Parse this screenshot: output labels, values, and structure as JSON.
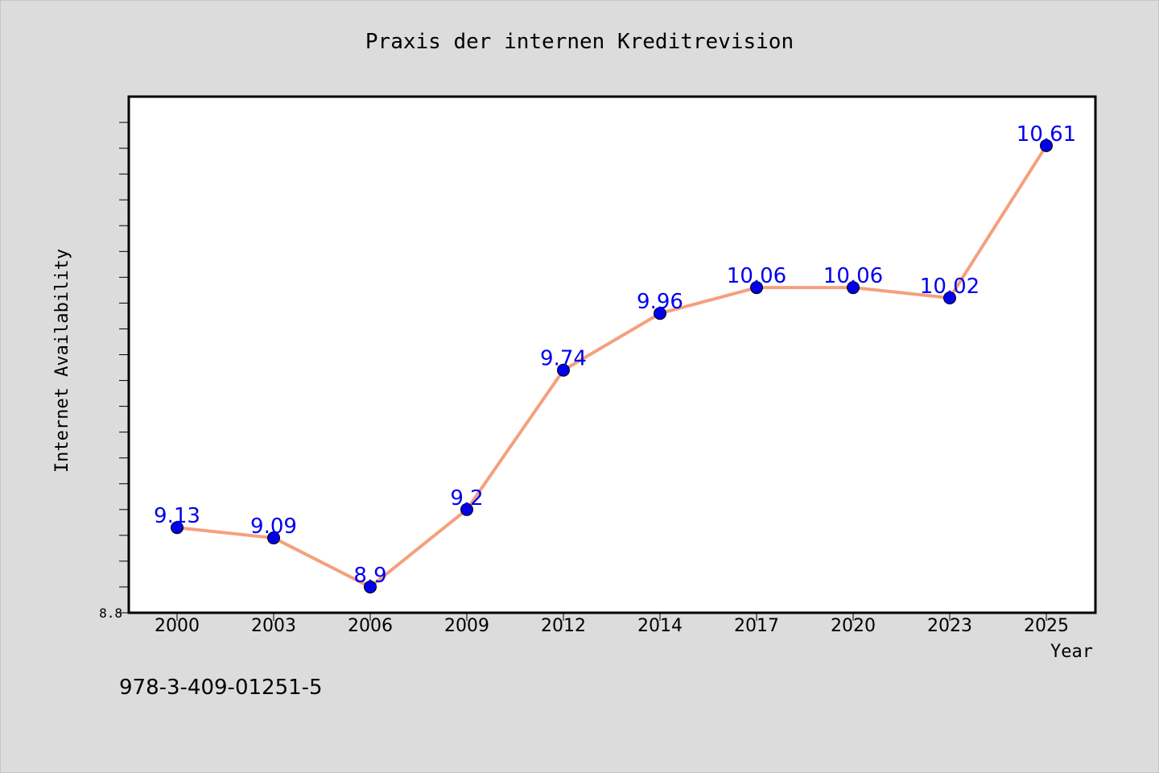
{
  "chart_data": {
    "type": "line",
    "title": "Praxis der internen Kreditrevision",
    "xlabel": "Year",
    "ylabel": "Internet Availability",
    "categories": [
      "2000",
      "2003",
      "2006",
      "2009",
      "2012",
      "2014",
      "2017",
      "2020",
      "2023",
      "2025"
    ],
    "series": [
      {
        "values": [
          9.13,
          9.09,
          8.9,
          9.2,
          9.74,
          9.96,
          10.06,
          10.06,
          10.02,
          10.61
        ],
        "point_labels": [
          "9.13",
          "9.09",
          "8.9",
          "9.2",
          "9.74",
          "9.96",
          "10.06",
          "10.06",
          "10.02",
          "10.61"
        ],
        "line_color": "#f4a07e",
        "marker_color": "#0000ee",
        "label_color": "#0000ee"
      }
    ],
    "ylim": [
      8.8,
      10.8
    ],
    "y_tick_labels": [
      "8.8"
    ],
    "grid": false,
    "legend": "none"
  },
  "annotation": "978-3-409-01251-5",
  "colors": {
    "background": "#dcdcdc",
    "plot_background": "#ffffff",
    "axis": "#000000"
  }
}
